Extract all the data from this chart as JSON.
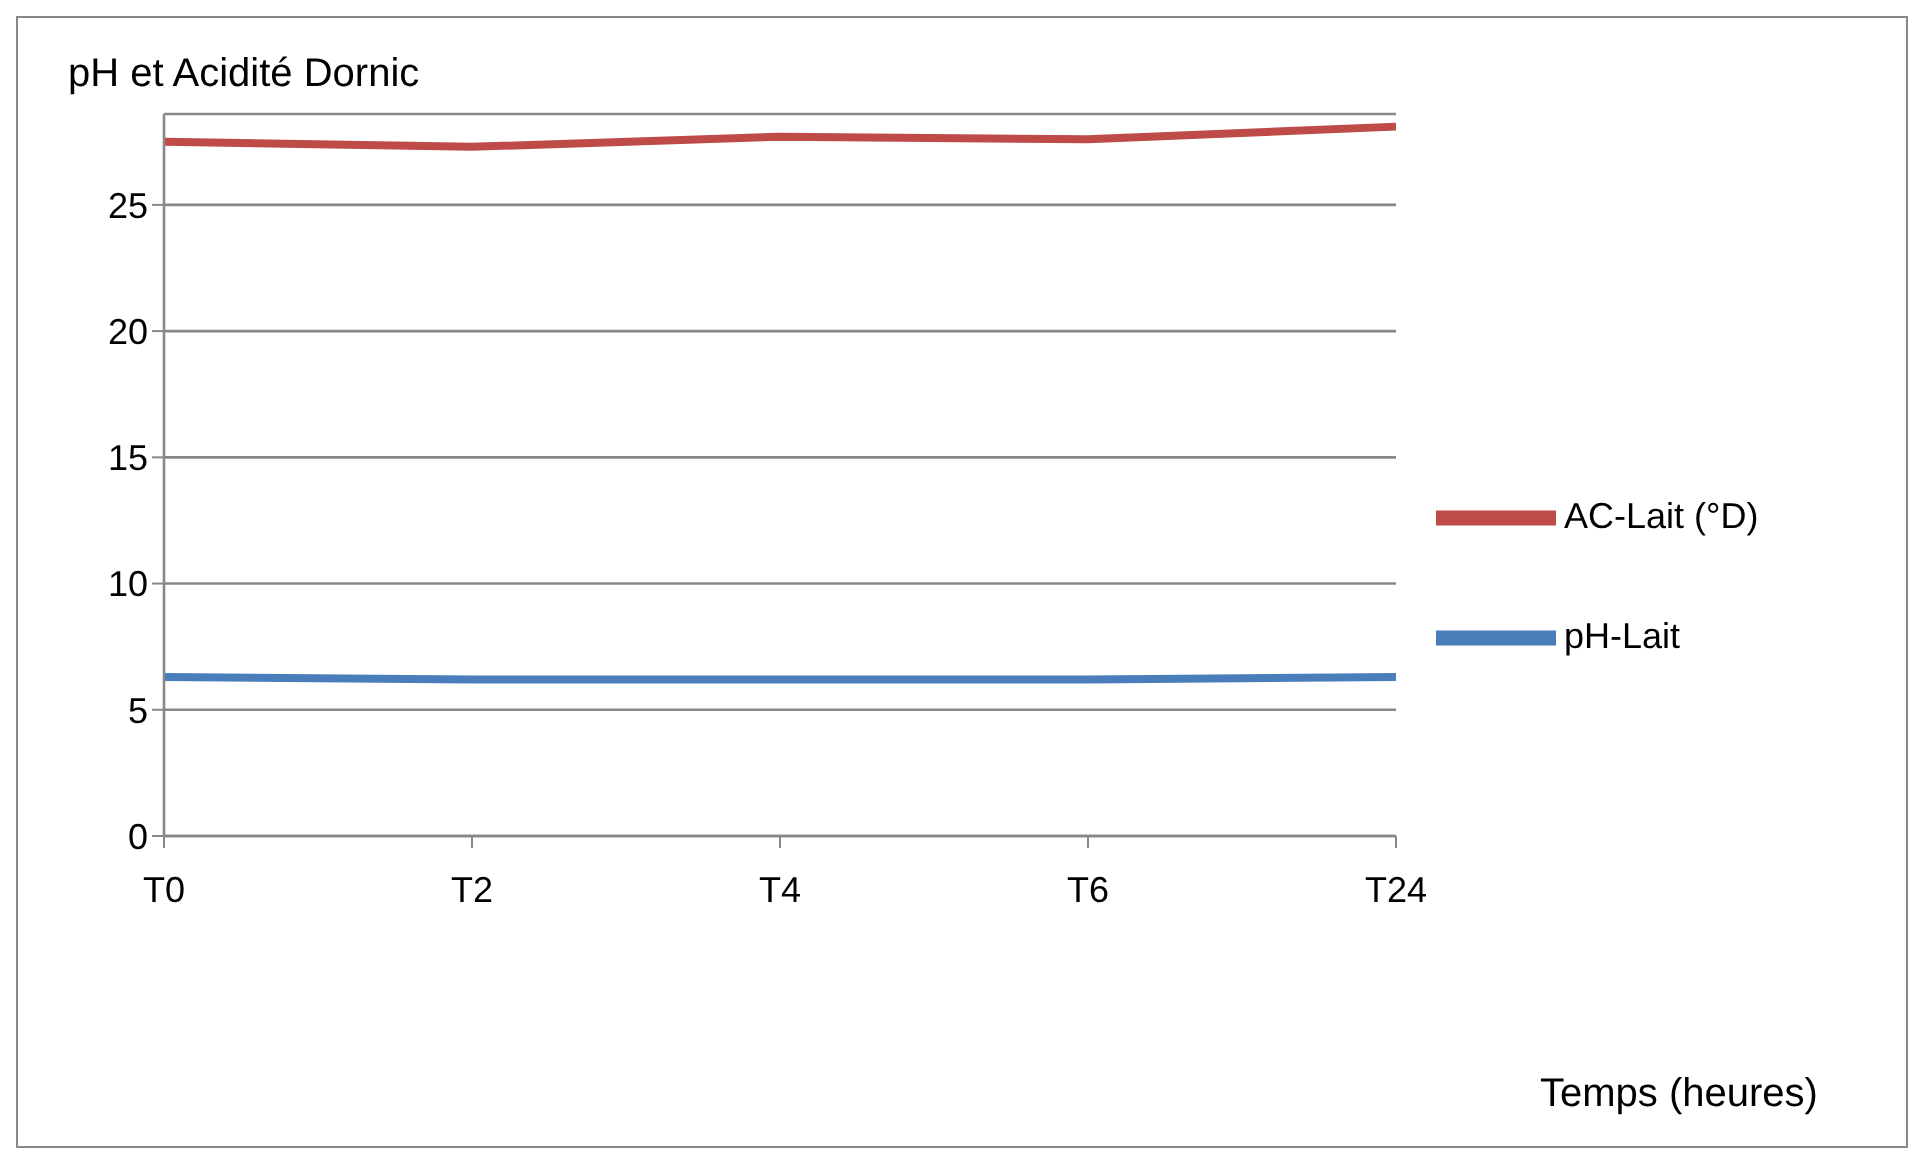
{
  "chart_data": {
    "type": "line",
    "title": "pH et Acidité Dornic",
    "xlabel": "Temps (heures)",
    "categories": [
      "T0",
      "T2",
      "T4",
      "T6",
      "T24"
    ],
    "series": [
      {
        "name": "pH-Lait",
        "color": "#4a7ebb",
        "values": [
          6.3,
          6.2,
          6.2,
          6.2,
          6.3
        ]
      },
      {
        "name": "AC-Lait (°D)",
        "color": "#be4b48",
        "values": [
          27.5,
          27.3,
          27.7,
          27.6,
          28.1
        ]
      }
    ],
    "ylim": [
      0,
      28.6
    ],
    "yticks": [
      0,
      5,
      10,
      15,
      20,
      25
    ],
    "grid": "y",
    "legend": "right",
    "marker": "none",
    "line_style": "solid"
  }
}
